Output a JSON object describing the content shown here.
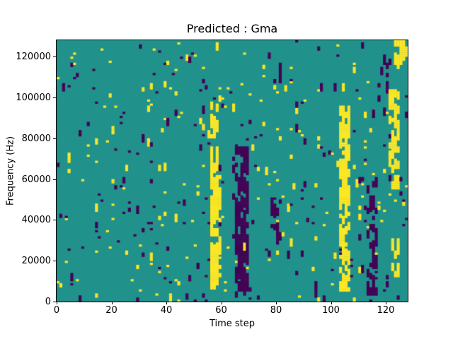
{
  "figure": {
    "title": "Predicted : Gma"
  },
  "axes": {
    "xlabel": "Time step",
    "ylabel": "Frequency (Hz)",
    "xticks": [
      0,
      20,
      40,
      60,
      80,
      100,
      120
    ],
    "yticks": [
      0,
      20000,
      40000,
      60000,
      80000,
      100000,
      120000
    ]
  },
  "chart_data": {
    "type": "heatmap",
    "title": "Predicted : Gma",
    "xlabel": "Time step",
    "ylabel": "Frequency (Hz)",
    "xlim": [
      0,
      128
    ],
    "ylim": [
      0,
      128000
    ],
    "grid_shape": [
      128,
      128
    ],
    "cell_hz": 1000,
    "colormap": "viridis-3-level",
    "value_colors": {
      "0": "#440154",
      "1": "#21918c",
      "2": "#fde725"
    },
    "background_value": 1,
    "legend": "none",
    "grid_lines": "off",
    "noise": {
      "description": "sparse random cells over teal background, short vertical runs",
      "start_prob_per_color": 0.013,
      "run_extend_prob": 0.45,
      "seed": 42
    },
    "features": [
      {
        "x": [
          56,
          58
        ],
        "rows": [
          6,
          75
        ],
        "value": 2,
        "density": 0.85
      },
      {
        "x": [
          56,
          58
        ],
        "rows": [
          80,
          97
        ],
        "value": 2,
        "density": 0.45
      },
      {
        "x": [
          59,
          59
        ],
        "rows": [
          10,
          70
        ],
        "value": 2,
        "density": 0.25
      },
      {
        "x": [
          65,
          69
        ],
        "rows": [
          5,
          75
        ],
        "value": 0,
        "density": 0.8
      },
      {
        "x": [
          64,
          64
        ],
        "rows": [
          20,
          70
        ],
        "value": 0,
        "density": 0.3
      },
      {
        "x": [
          78,
          81
        ],
        "rows": [
          22,
          50
        ],
        "value": 0,
        "density": 0.35
      },
      {
        "x": [
          79,
          81
        ],
        "rows": [
          105,
          116
        ],
        "value": 0,
        "density": 0.35
      },
      {
        "x": [
          103,
          106
        ],
        "rows": [
          5,
          95
        ],
        "value": 2,
        "density": 0.8
      },
      {
        "x": [
          113,
          116
        ],
        "rows": [
          3,
          60
        ],
        "value": 0,
        "density": 0.4
      },
      {
        "x": [
          121,
          124
        ],
        "rows": [
          55,
          103
        ],
        "value": 2,
        "density": 0.65
      },
      {
        "x": [
          122,
          124
        ],
        "rows": [
          12,
          30
        ],
        "value": 2,
        "density": 0.5
      },
      {
        "x": [
          123,
          127
        ],
        "rows": [
          116,
          127
        ],
        "value": 2,
        "density": 0.8
      },
      {
        "x": [
          117,
          120
        ],
        "rows": [
          98,
          120
        ],
        "value": 0,
        "density": 0.25
      }
    ]
  }
}
